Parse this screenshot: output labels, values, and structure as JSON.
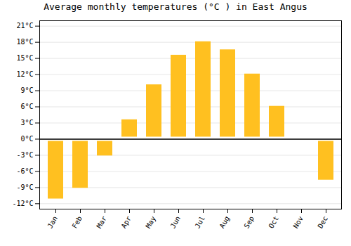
{
  "chart_data": {
    "type": "bar",
    "title": "Average monthly temperatures (°C ) in East Angus",
    "categories": [
      "Jan",
      "Feb",
      "Mar",
      "Apr",
      "May",
      "Jun",
      "Jul",
      "Aug",
      "Sep",
      "Oct",
      "Nov",
      "Dec"
    ],
    "values": [
      -11.5,
      -9.5,
      -3.5,
      4.0,
      10.5,
      16.0,
      18.5,
      17.0,
      12.5,
      6.5,
      -0.5,
      -8.0
    ],
    "color": "#FFC020",
    "ylim": [
      -13,
      22
    ],
    "yticks": [
      {
        "value": -12,
        "label": "-12°C"
      },
      {
        "value": -9,
        "label": "-9°C"
      },
      {
        "value": -6,
        "label": "-6°C"
      },
      {
        "value": -3,
        "label": "-3°C"
      },
      {
        "value": 0,
        "label": "0°C"
      },
      {
        "value": 3,
        "label": "3°C"
      },
      {
        "value": 6,
        "label": "6°C"
      },
      {
        "value": 9,
        "label": "9°C"
      },
      {
        "value": 12,
        "label": "12°C"
      },
      {
        "value": 15,
        "label": "15°C"
      },
      {
        "value": 18,
        "label": "18°C"
      },
      {
        "value": 21,
        "label": "21°C"
      }
    ],
    "grid": true
  }
}
